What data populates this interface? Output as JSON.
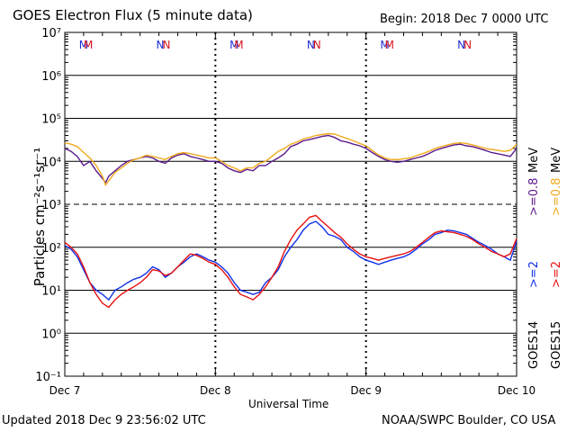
{
  "header": {
    "title": "GOES Electron Flux (5 minute data)",
    "begin": "Begin: 2018 Dec 7 0000 UTC"
  },
  "footer": {
    "updated": "Updated 2018 Dec  9 23:56:02 UTC",
    "credit": "NOAA/SWPC Boulder, CO USA"
  },
  "colors": {
    "goes14_08": "#5b1a8c",
    "goes15_08": "#f0a91c",
    "goes14_2": "#1030e8",
    "goes15_2": "#e81010",
    "mark_M": [
      "#1f2fd6",
      "#d9141d"
    ],
    "mark_N": [
      "#1f2fd6",
      "#d9141d"
    ]
  },
  "chart_data": {
    "type": "line",
    "title": "GOES Electron Flux (5 minute data)",
    "xlabel": "Universal Time",
    "ylabel": "Particles cm⁻²s⁻¹sr⁻¹",
    "y_scale": "log",
    "ylim": [
      0.1,
      10000000
    ],
    "y_ticks": [
      "10⁻¹",
      "10⁰",
      "10¹",
      "10²",
      "10³",
      "10⁴",
      "10⁵",
      "10⁶",
      "10⁷"
    ],
    "x_tick_labels": [
      "Dec 7",
      "Dec 8",
      "Dec 9",
      "Dec 10"
    ],
    "x_unit": "hours since 2018 Dec 7 0000 UTC",
    "xlim": [
      0,
      72
    ],
    "grid": "horizontal lines at each decade",
    "threshold_line": 1000,
    "markers": [
      {
        "text": "M",
        "x": 3.0,
        "color_index": 0
      },
      {
        "text": "M",
        "x": 3.75,
        "color_index": 1
      },
      {
        "text": "N",
        "x": 15.2,
        "color_index": 0
      },
      {
        "text": "N",
        "x": 16.2,
        "color_index": 1
      },
      {
        "text": "M",
        "x": 27.0,
        "color_index": 0
      },
      {
        "text": "M",
        "x": 27.75,
        "color_index": 1
      },
      {
        "text": "N",
        "x": 39.2,
        "color_index": 0
      },
      {
        "text": "N",
        "x": 40.2,
        "color_index": 1
      },
      {
        "text": "M",
        "x": 51.0,
        "color_index": 0
      },
      {
        "text": "M",
        "x": 51.75,
        "color_index": 1
      },
      {
        "text": "N",
        "x": 63.2,
        "color_index": 0
      },
      {
        "text": "N",
        "x": 64.2,
        "color_index": 1
      }
    ],
    "right_labels": [
      {
        "text": "GOES14",
        "color": "#000000"
      },
      {
        "text": "GOES15",
        "color": "#000000"
      },
      {
        "text": ">=2",
        "color": "#1030e8"
      },
      {
        "text": ">=2",
        "color": "#e81010"
      },
      {
        "text": ">=0.8",
        "color": "#5b1a8c"
      },
      {
        "text": ">=0.8",
        "color": "#f0a91c"
      },
      {
        "text": "MeV",
        "color": "#000000"
      },
      {
        "text": "MeV",
        "color": "#000000"
      }
    ],
    "series": [
      {
        "name": "GOES14 >=0.8 MeV",
        "color": "#5b1a8c",
        "x": [
          0,
          1,
          2,
          3,
          4,
          5,
          6,
          6.5,
          7,
          8,
          9,
          10,
          11,
          12,
          13,
          14,
          15,
          16,
          17,
          18,
          19,
          20,
          21,
          22,
          23,
          24,
          25,
          26,
          27,
          28,
          29,
          30,
          31,
          32,
          33,
          34,
          35,
          36,
          37,
          38,
          39,
          40,
          41,
          42,
          43,
          44,
          45,
          46,
          47,
          48,
          49,
          50,
          51,
          52,
          53,
          54,
          55,
          56,
          57,
          58,
          59,
          60,
          61,
          62,
          63,
          64,
          65,
          66,
          67,
          68,
          69,
          70,
          71,
          72
        ],
        "values": [
          20000,
          17000,
          13000,
          8000,
          10000,
          6000,
          4000,
          3200,
          4500,
          6000,
          8000,
          10000,
          11000,
          12000,
          13000,
          12000,
          10000,
          9000,
          12000,
          14000,
          15000,
          13000,
          12000,
          11000,
          10000,
          10000,
          9000,
          7000,
          6000,
          5500,
          6500,
          6000,
          8000,
          8000,
          10000,
          12000,
          15000,
          22000,
          25000,
          30000,
          32000,
          35000,
          38000,
          40000,
          36000,
          30000,
          28000,
          25000,
          23000,
          20000,
          16000,
          13000,
          11000,
          10000,
          9500,
          10000,
          11000,
          12000,
          13000,
          15000,
          18000,
          20000,
          22000,
          24000,
          25000,
          23000,
          22000,
          20000,
          18000,
          16000,
          15000,
          14000,
          13000,
          20000
        ]
      },
      {
        "name": "GOES15 >=0.8 MeV",
        "color": "#f0a91c",
        "x": [
          0,
          1,
          2,
          3,
          4,
          5,
          6,
          6.5,
          7,
          8,
          9,
          10,
          11,
          12,
          13,
          14,
          15,
          16,
          17,
          18,
          19,
          20,
          21,
          22,
          23,
          24,
          25,
          26,
          27,
          28,
          29,
          30,
          31,
          32,
          33,
          34,
          35,
          36,
          37,
          38,
          39,
          40,
          41,
          42,
          43,
          44,
          45,
          46,
          47,
          48,
          49,
          50,
          51,
          52,
          53,
          54,
          55,
          56,
          57,
          58,
          59,
          60,
          61,
          62,
          63,
          64,
          65,
          66,
          67,
          68,
          69,
          70,
          71,
          72
        ],
        "values": [
          27000,
          25000,
          22000,
          16000,
          12000,
          8000,
          4500,
          2800,
          3500,
          5500,
          7000,
          9000,
          11000,
          12000,
          14000,
          13000,
          12000,
          11000,
          13000,
          15000,
          16000,
          15000,
          14000,
          13000,
          12000,
          12000,
          10000,
          8000,
          7000,
          6000,
          7000,
          7000,
          9000,
          10000,
          13000,
          17000,
          20000,
          25000,
          28000,
          33000,
          36000,
          40000,
          42000,
          44000,
          43000,
          38000,
          34000,
          30000,
          26000,
          23000,
          18000,
          14000,
          12000,
          11000,
          11000,
          11500,
          12000,
          13500,
          15000,
          17000,
          20000,
          22000,
          24000,
          26000,
          27000,
          26000,
          24000,
          22000,
          20000,
          19000,
          18000,
          17000,
          18000,
          25000
        ]
      },
      {
        "name": "GOES14 >=2 MeV",
        "color": "#1030e8",
        "x": [
          0,
          1,
          2,
          3,
          4,
          5,
          6,
          7,
          8,
          9,
          10,
          11,
          12,
          13,
          14,
          15,
          16,
          17,
          18,
          19,
          20,
          21,
          22,
          23,
          24,
          25,
          26,
          27,
          28,
          29,
          30,
          31,
          32,
          33,
          34,
          35,
          36,
          37,
          38,
          39,
          40,
          41,
          42,
          43,
          44,
          45,
          46,
          47,
          48,
          49,
          50,
          51,
          52,
          53,
          54,
          55,
          56,
          57,
          58,
          59,
          60,
          61,
          62,
          63,
          64,
          65,
          66,
          67,
          68,
          69,
          70,
          71,
          72
        ],
        "values": [
          110,
          90,
          60,
          30,
          15,
          10,
          8,
          6,
          10,
          12,
          15,
          18,
          20,
          25,
          35,
          30,
          20,
          25,
          35,
          45,
          60,
          70,
          60,
          50,
          45,
          35,
          25,
          15,
          10,
          9,
          8,
          9,
          15,
          20,
          30,
          60,
          100,
          150,
          250,
          350,
          400,
          300,
          200,
          180,
          150,
          100,
          80,
          60,
          50,
          45,
          40,
          45,
          50,
          55,
          60,
          70,
          90,
          120,
          150,
          200,
          220,
          250,
          240,
          220,
          200,
          160,
          130,
          110,
          90,
          70,
          60,
          50,
          140
        ]
      },
      {
        "name": "GOES15 >=2 MeV",
        "color": "#e81010",
        "x": [
          0,
          1,
          2,
          3,
          4,
          5,
          6,
          7,
          8,
          9,
          10,
          11,
          12,
          13,
          14,
          15,
          16,
          17,
          18,
          19,
          20,
          21,
          22,
          23,
          24,
          25,
          26,
          27,
          28,
          29,
          30,
          31,
          32,
          33,
          34,
          35,
          36,
          37,
          38,
          39,
          40,
          41,
          42,
          43,
          44,
          45,
          46,
          47,
          48,
          49,
          50,
          51,
          52,
          53,
          54,
          55,
          56,
          57,
          58,
          59,
          60,
          61,
          62,
          63,
          64,
          65,
          66,
          67,
          68,
          69,
          70,
          71,
          72
        ],
        "values": [
          130,
          100,
          70,
          35,
          15,
          8,
          5,
          4,
          6,
          8,
          10,
          12,
          15,
          20,
          30,
          28,
          22,
          25,
          35,
          50,
          70,
          65,
          55,
          45,
          40,
          30,
          20,
          12,
          8,
          7,
          6,
          8,
          12,
          20,
          35,
          80,
          150,
          250,
          350,
          500,
          550,
          400,
          300,
          220,
          170,
          120,
          90,
          70,
          60,
          55,
          50,
          55,
          60,
          65,
          70,
          80,
          100,
          130,
          170,
          220,
          240,
          230,
          220,
          200,
          180,
          150,
          120,
          100,
          80,
          70,
          60,
          70,
          160
        ]
      }
    ]
  }
}
